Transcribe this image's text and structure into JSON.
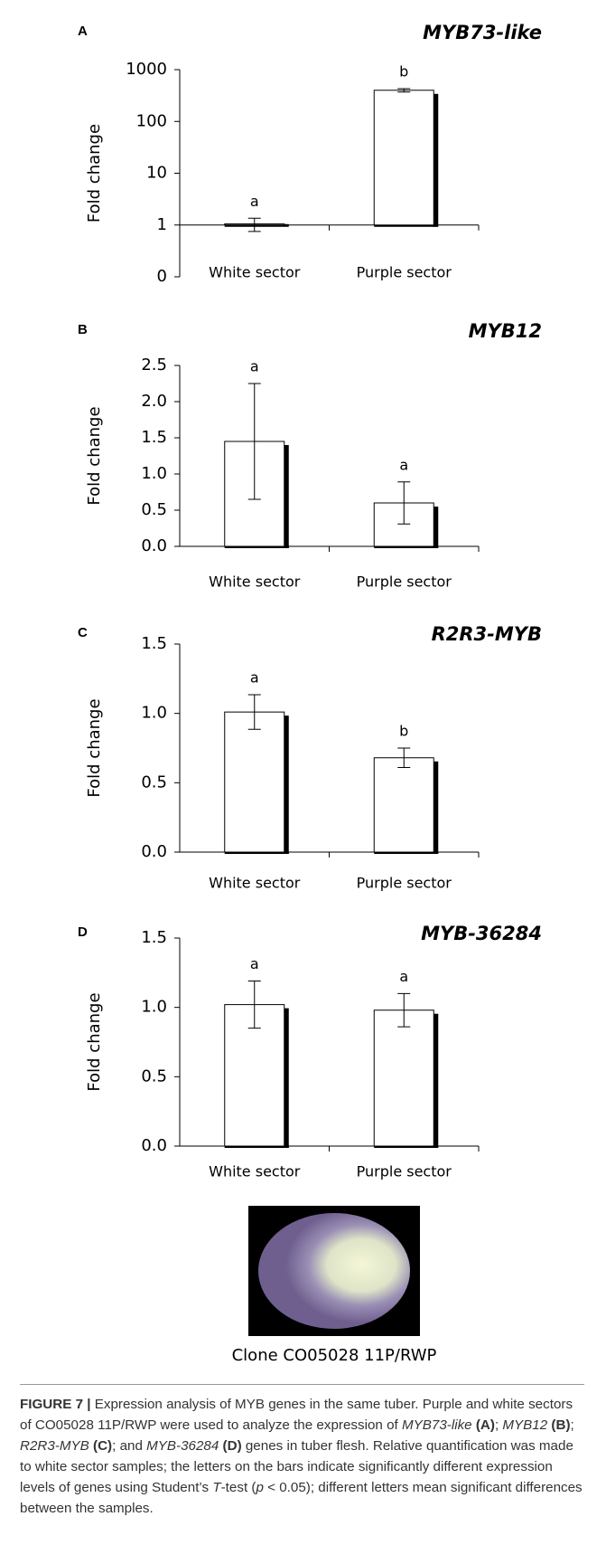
{
  "chart_data": [
    {
      "type": "bar",
      "panel": "A",
      "title": "MYB73-like",
      "ylabel": "Fold change",
      "log": true,
      "categories": [
        "White sector",
        "Purple sector"
      ],
      "values": [
        1.05,
        400
      ],
      "errors": [
        0.3,
        30
      ],
      "annotations": [
        "a",
        "b"
      ],
      "color": "#ffffff",
      "shadow": "#000000",
      "ylim": [
        0.1,
        1000
      ],
      "yticks": [
        {
          "value": 0.1,
          "label": "0"
        },
        1,
        10,
        100,
        1000
      ]
    },
    {
      "type": "bar",
      "panel": "B",
      "title": "MYB12",
      "ylabel": "Fold change",
      "log": false,
      "categories": [
        "White sector",
        "Purple sector"
      ],
      "values": [
        1.45,
        0.6
      ],
      "errors": [
        0.8,
        0.29
      ],
      "annotations": [
        "a",
        "a"
      ],
      "color": "#ffffff",
      "shadow": "#000000",
      "ylim": [
        0,
        2.5
      ],
      "yticks": [
        {
          "value": 0,
          "label": "0.0"
        },
        0.5,
        {
          "value": 1,
          "label": "1.0"
        },
        1.5,
        {
          "value": 2,
          "label": "2.0"
        },
        2.5
      ]
    },
    {
      "type": "bar",
      "panel": "C",
      "title": "R2R3-MYB",
      "ylabel": "Fold change",
      "log": false,
      "categories": [
        "White sector",
        "Purple sector"
      ],
      "values": [
        1.01,
        0.68
      ],
      "errors": [
        0.125,
        0.07
      ],
      "annotations": [
        "a",
        "b"
      ],
      "color": "#ffffff",
      "shadow": "#000000",
      "ylim": [
        0,
        1.5
      ],
      "yticks": [
        {
          "value": 0,
          "label": "0.0"
        },
        0.5,
        {
          "value": 1,
          "label": "1.0"
        },
        1.5
      ]
    },
    {
      "type": "bar",
      "panel": "D",
      "title": "MYB-36284",
      "ylabel": "Fold change",
      "log": false,
      "categories": [
        "White sector",
        "Purple sector"
      ],
      "values": [
        1.02,
        0.98
      ],
      "errors": [
        0.17,
        0.12
      ],
      "annotations": [
        "a",
        "a"
      ],
      "color": "#ffffff",
      "shadow": "#000000",
      "ylim": [
        0,
        1.5
      ],
      "yticks": [
        {
          "value": 0,
          "label": "0.0"
        },
        0.5,
        {
          "value": 1,
          "label": "1.0"
        },
        1.5
      ]
    }
  ],
  "figure": {
    "photo_label": "Clone CO05028 11P/RWP",
    "caption": [
      "FIGURE 7 |",
      " Expression analysis of MYB genes in the same tuber. Purple and white sectors of CO05028 11P/RWP were used to analyze the expression of ",
      "MYB73-like",
      " (A)",
      "; ",
      "MYB12",
      " (B)",
      "; ",
      "R2R3-MYB",
      " (C)",
      "; and ",
      "MYB-36284",
      " (D)",
      " genes in tuber flesh. Relative quantification was made to white sector samples; the letters on the bars indicate significantly different expression levels of genes using Student’s ",
      "T",
      "-test (",
      "p",
      " < 0.05); different letters mean significant differences between the samples."
    ]
  }
}
